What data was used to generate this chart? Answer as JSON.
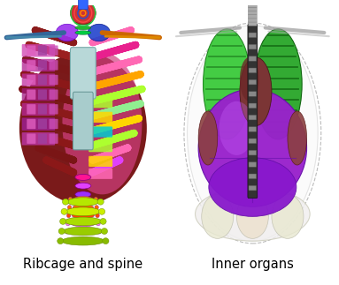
{
  "background_color": "#ffffff",
  "left_label": "Ribcage and spine",
  "right_label": "Inner organs",
  "label_fontsize": 10.5,
  "fig_width": 3.83,
  "fig_height": 3.23,
  "dpi": 100
}
